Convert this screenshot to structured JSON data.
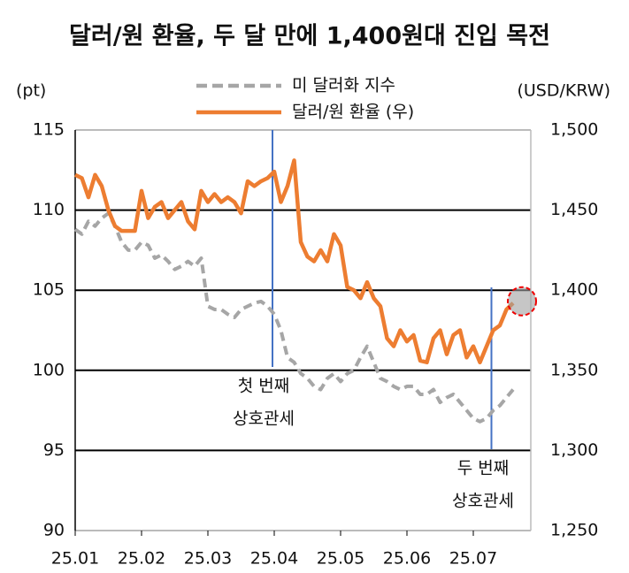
{
  "chart_data": {
    "type": "line",
    "title": "달러/원 환율, 두 달 만에 1,400원대 진입 목전",
    "y_label": "(pt)",
    "y2_label": "(USD/KRW)",
    "categories": [
      "25.01",
      null,
      null,
      null,
      null,
      null,
      null,
      null,
      null,
      null,
      "25.02",
      null,
      null,
      null,
      null,
      null,
      null,
      null,
      null,
      null,
      "25.03",
      null,
      null,
      null,
      null,
      null,
      null,
      null,
      null,
      null,
      "25.04",
      null,
      null,
      null,
      null,
      null,
      null,
      null,
      null,
      null,
      "25.05",
      null,
      null,
      null,
      null,
      null,
      null,
      null,
      null,
      null,
      "25.06",
      null,
      null,
      null,
      null,
      null,
      null,
      null,
      null,
      null,
      "25.07",
      null,
      null,
      null,
      null,
      null,
      null
    ],
    "series": [
      {
        "name": "미 달러화 지수",
        "color": "#a6a6a6",
        "dashed": true,
        "values": [
          108.8,
          108.5,
          109.3,
          109.0,
          109.5,
          109.8,
          109.0,
          108.0,
          107.5,
          107.5,
          108.0,
          107.8,
          107.0,
          107.2,
          106.8,
          106.3,
          106.5,
          106.8,
          106.5,
          107.0,
          104.0,
          103.8,
          103.8,
          103.5,
          103.3,
          103.8,
          104.0,
          104.2,
          104.3,
          104.0,
          103.5,
          102.5,
          100.8,
          100.5,
          99.8,
          99.5,
          99.0,
          98.8,
          99.5,
          99.8,
          99.3,
          99.8,
          100.0,
          100.8,
          101.5,
          100.5,
          99.5,
          99.3,
          99.0,
          98.8,
          99.0,
          99.0,
          98.5,
          98.5,
          98.8,
          98.0,
          98.3,
          98.5,
          98.0,
          97.5,
          97.0,
          96.8,
          97.0,
          97.5,
          97.8,
          98.3,
          98.8
        ]
      },
      {
        "name": "달러/원 환율 (우)",
        "color": "#ed7d31",
        "axis": "y2",
        "values": [
          1472,
          1470,
          1458,
          1472,
          1465,
          1450,
          1440,
          1437,
          1437,
          1437,
          1462,
          1445,
          1452,
          1455,
          1445,
          1450,
          1455,
          1443,
          1438,
          1462,
          1455,
          1460,
          1455,
          1458,
          1455,
          1448,
          1468,
          1465,
          1468,
          1470,
          1474,
          1455,
          1465,
          1481,
          1430,
          1421,
          1418,
          1425,
          1418,
          1435,
          1428,
          1402,
          1400,
          1395,
          1405,
          1395,
          1390,
          1370,
          1365,
          1375,
          1368,
          1372,
          1356,
          1355,
          1370,
          1375,
          1360,
          1372,
          1375,
          1358,
          1365,
          1355,
          1365,
          1375,
          1378,
          1388,
          1392
        ]
      }
    ],
    "ylim": [
      90,
      115
    ],
    "yticks": [
      90,
      95,
      100,
      105,
      110,
      115
    ],
    "y2lim": [
      1250,
      1500
    ],
    "y2ticks": [
      {
        "value": 1250,
        "label": "1,250"
      },
      {
        "value": 1300,
        "label": "1,300"
      },
      {
        "value": 1350,
        "label": "1,350"
      },
      {
        "value": 1400,
        "label": "1,400"
      },
      {
        "value": 1450,
        "label": "1,450"
      },
      {
        "value": 1500,
        "label": "1,500"
      }
    ],
    "grid": true,
    "annotations": [
      {
        "lines": [
          "첫 번째",
          "상호관세"
        ]
      },
      {
        "lines": [
          "두 번째",
          "상호관세"
        ]
      }
    ]
  }
}
